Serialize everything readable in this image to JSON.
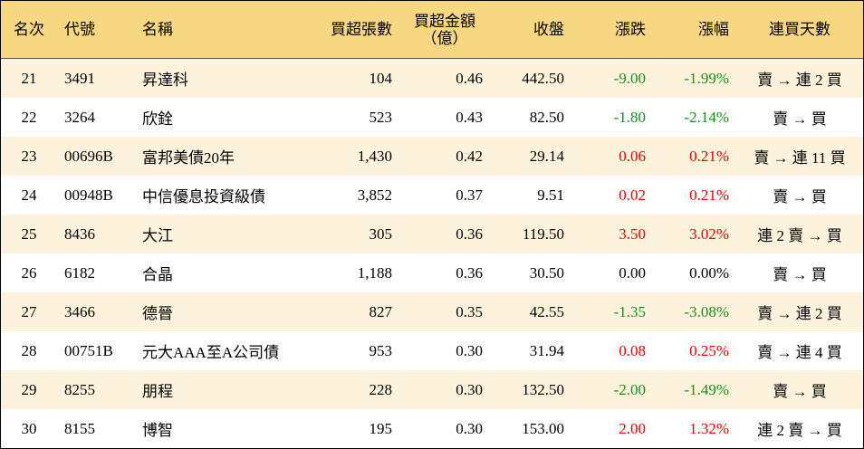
{
  "table": {
    "header": [
      "名次",
      "代號",
      "名稱",
      "買超張數",
      [
        "買超金額",
        "（億）"
      ],
      "收盤",
      "漲跌",
      "漲幅",
      "連買天數"
    ],
    "rows": [
      [
        "21",
        "3491",
        "昇達科",
        "104",
        "0.46",
        "442.50",
        "-9.00",
        "-1.99%",
        "賣 → 連 2 買"
      ],
      [
        "22",
        "3264",
        "欣銓",
        "523",
        "0.43",
        "82.50",
        "-1.80",
        "-2.14%",
        "賣 → 買"
      ],
      [
        "23",
        "00696B",
        "富邦美債20年",
        "1,430",
        "0.42",
        "29.14",
        "0.06",
        "0.21%",
        "賣 → 連 11 買"
      ],
      [
        "24",
        "00948B",
        "中信優息投資級債",
        "3,852",
        "0.37",
        "9.51",
        "0.02",
        "0.21%",
        "賣 → 買"
      ],
      [
        "25",
        "8436",
        "大江",
        "305",
        "0.36",
        "119.50",
        "3.50",
        "3.02%",
        "連 2 賣 → 買"
      ],
      [
        "26",
        "6182",
        "合晶",
        "1,188",
        "0.36",
        "30.50",
        "0.00",
        "0.00%",
        "賣 → 買"
      ],
      [
        "27",
        "3466",
        "德晉",
        "827",
        "0.35",
        "42.55",
        "-1.35",
        "-3.08%",
        "賣 → 連 2 買"
      ],
      [
        "28",
        "00751B",
        "元大AAA至A公司債",
        "953",
        "0.30",
        "31.94",
        "0.08",
        "0.25%",
        "賣 → 連 4 買"
      ],
      [
        "29",
        "8255",
        "朋程",
        "228",
        "0.30",
        "132.50",
        "-2.00",
        "-1.49%",
        "賣 → 買"
      ],
      [
        "30",
        "8155",
        "博智",
        "195",
        "0.30",
        "153.00",
        "2.00",
        "1.32%",
        "連 2 賣 → 買"
      ]
    ]
  }
}
